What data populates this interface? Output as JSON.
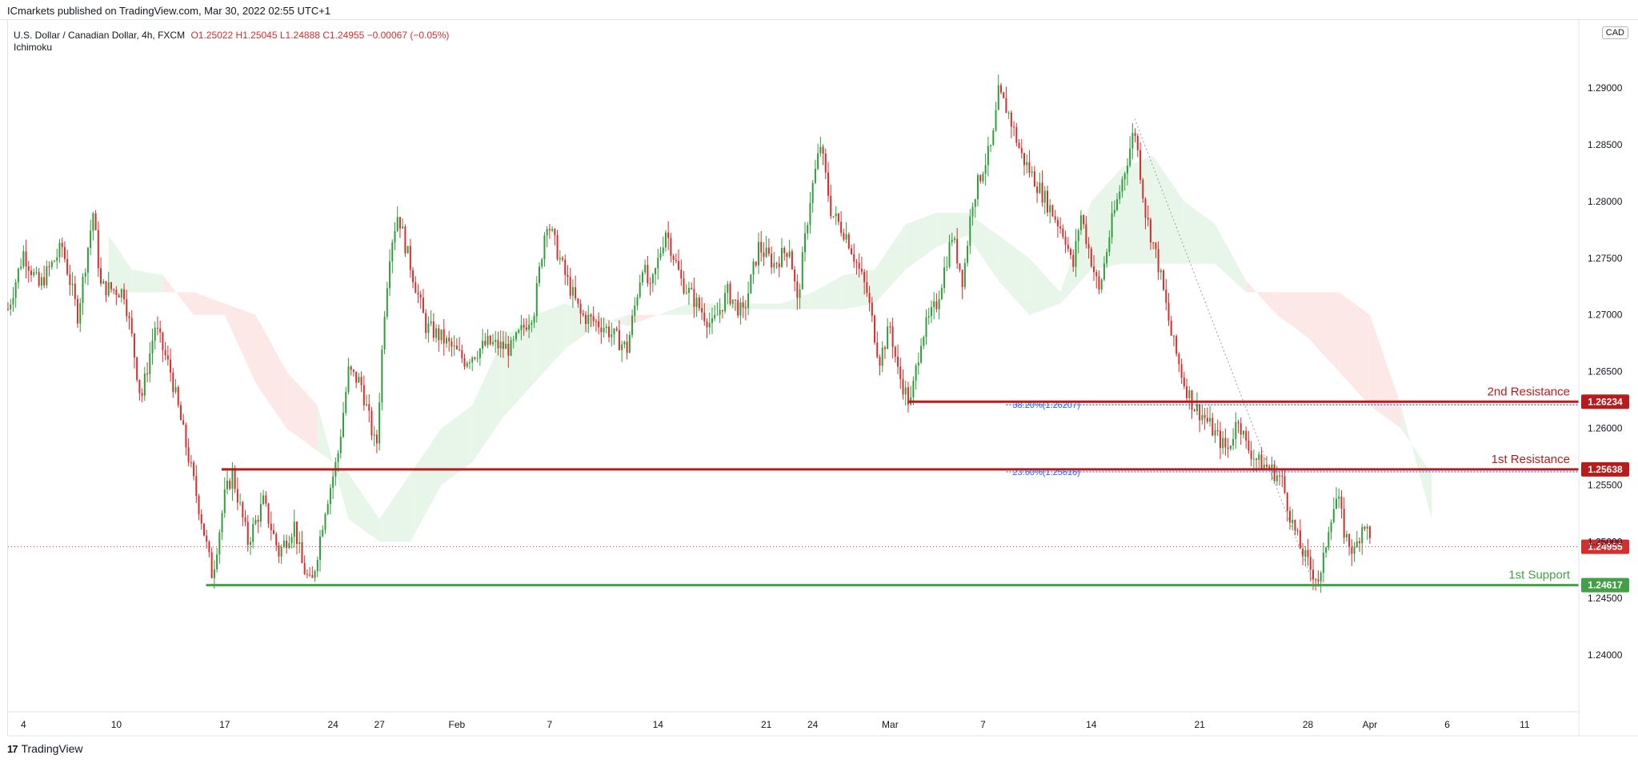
{
  "header": {
    "published": "ICmarkets published on TradingView.com, Mar 30, 2022 02:55 UTC+1"
  },
  "legend": {
    "symbol": "U.S. Dollar / Canadian Dollar, 4h, FXCM",
    "ohlc_text": "O1.25022 H1.25045 L1.24888 C1.24955 −0.00067 (−0.05%)",
    "indicator": "Ichimoku"
  },
  "currency_button": "CAD",
  "footer": {
    "brand_mark": "17",
    "brand": "TradingView"
  },
  "colors": {
    "up": "#26a69a",
    "bull": "#2e9e3a",
    "bear": "#d32f2f",
    "resistance": "#b71c1c",
    "support": "#43a047",
    "fib": "#2962ff",
    "cloud_bull": "#e8f5e9",
    "cloud_bear": "#fde8e8"
  },
  "chart_data": {
    "type": "candlestick",
    "title": "U.S. Dollar / Canadian Dollar, 4h, FXCM",
    "ylim": [
      1.235,
      1.296
    ],
    "y_ticks": [
      "1.29000",
      "1.28500",
      "1.28000",
      "1.27500",
      "1.27000",
      "1.26500",
      "1.26000",
      "1.25500",
      "1.25000",
      "1.24500",
      "1.24000"
    ],
    "y_tick_values": [
      1.29,
      1.285,
      1.28,
      1.275,
      1.27,
      1.265,
      1.26,
      1.255,
      1.25,
      1.245,
      1.24
    ],
    "x_ticks": [
      {
        "label": "4",
        "day": 4
      },
      {
        "label": "10",
        "day": 10
      },
      {
        "label": "17",
        "day": 17
      },
      {
        "label": "24",
        "day": 24
      },
      {
        "label": "27",
        "day": 27
      },
      {
        "label": "Feb",
        "day": 32
      },
      {
        "label": "7",
        "day": 38
      },
      {
        "label": "14",
        "day": 45
      },
      {
        "label": "21",
        "day": 52
      },
      {
        "label": "24",
        "day": 55
      },
      {
        "label": "Mar",
        "day": 60
      },
      {
        "label": "7",
        "day": 66
      },
      {
        "label": "14",
        "day": 73
      },
      {
        "label": "21",
        "day": 80
      },
      {
        "label": "28",
        "day": 87
      },
      {
        "label": "Apr",
        "day": 91
      },
      {
        "label": "6",
        "day": 96
      },
      {
        "label": "11",
        "day": 101
      }
    ],
    "x_range_days": [
      3,
      104.5
    ],
    "price_path": [
      [
        3.0,
        1.2705
      ],
      [
        4.0,
        1.2755
      ],
      [
        5.0,
        1.2725
      ],
      [
        6.5,
        1.276
      ],
      [
        7.5,
        1.27
      ],
      [
        8.5,
        1.279
      ],
      [
        9.0,
        1.2725
      ],
      [
        10.5,
        1.272
      ],
      [
        11.0,
        1.268
      ],
      [
        11.6,
        1.2625
      ],
      [
        12.5,
        1.269
      ],
      [
        13.5,
        1.265
      ],
      [
        14.5,
        1.2585
      ],
      [
        15.5,
        1.252
      ],
      [
        16.2,
        1.247
      ],
      [
        17.0,
        1.254
      ],
      [
        17.5,
        1.256
      ],
      [
        18.5,
        1.25
      ],
      [
        19.5,
        1.2535
      ],
      [
        20.5,
        1.249
      ],
      [
        21.5,
        1.2515
      ],
      [
        22.0,
        1.248
      ],
      [
        22.6,
        1.246
      ],
      [
        23.5,
        1.253
      ],
      [
        24.3,
        1.2575
      ],
      [
        25.0,
        1.265
      ],
      [
        25.8,
        1.264
      ],
      [
        26.8,
        1.258
      ],
      [
        27.3,
        1.27
      ],
      [
        27.7,
        1.276
      ],
      [
        28.2,
        1.279
      ],
      [
        28.7,
        1.276
      ],
      [
        30.0,
        1.269
      ],
      [
        31.0,
        1.268
      ],
      [
        32.5,
        1.266
      ],
      [
        34.0,
        1.2675
      ],
      [
        35.5,
        1.267
      ],
      [
        37.0,
        1.2705
      ],
      [
        37.8,
        1.2785
      ],
      [
        39.0,
        1.2735
      ],
      [
        40.0,
        1.27
      ],
      [
        41.5,
        1.269
      ],
      [
        43.0,
        1.267
      ],
      [
        44.0,
        1.2745
      ],
      [
        44.5,
        1.272
      ],
      [
        45.5,
        1.2775
      ],
      [
        46.5,
        1.273
      ],
      [
        47.5,
        1.271
      ],
      [
        48.5,
        1.269
      ],
      [
        49.5,
        1.272
      ],
      [
        50.5,
        1.27
      ],
      [
        51.5,
        1.276
      ],
      [
        52.5,
        1.2745
      ],
      [
        53.5,
        1.276
      ],
      [
        54.0,
        1.271
      ],
      [
        54.8,
        1.28
      ],
      [
        55.5,
        1.285
      ],
      [
        56.2,
        1.279
      ],
      [
        57.2,
        1.277
      ],
      [
        58.5,
        1.272
      ],
      [
        59.3,
        1.266
      ],
      [
        60.0,
        1.269
      ],
      [
        60.5,
        1.265
      ],
      [
        61.3,
        1.262
      ],
      [
        62.0,
        1.268
      ],
      [
        63.0,
        1.271
      ],
      [
        64.0,
        1.277
      ],
      [
        64.7,
        1.273
      ],
      [
        65.3,
        1.28
      ],
      [
        66.0,
        1.283
      ],
      [
        66.6,
        1.285
      ],
      [
        67.0,
        1.2895
      ],
      [
        67.6,
        1.288
      ],
      [
        68.5,
        1.284
      ],
      [
        69.5,
        1.2815
      ],
      [
        70.5,
        1.279
      ],
      [
        71.3,
        1.277
      ],
      [
        71.8,
        1.274
      ],
      [
        72.3,
        1.279
      ],
      [
        72.8,
        1.276
      ],
      [
        73.5,
        1.272
      ],
      [
        74.3,
        1.278
      ],
      [
        75.2,
        1.283
      ],
      [
        75.8,
        1.2865
      ],
      [
        76.5,
        1.279
      ],
      [
        77.4,
        1.274
      ],
      [
        78.2,
        1.268
      ],
      [
        79.0,
        1.264
      ],
      [
        79.6,
        1.262
      ],
      [
        80.3,
        1.261
      ],
      [
        81.0,
        1.2595
      ],
      [
        81.8,
        1.258
      ],
      [
        82.5,
        1.261
      ],
      [
        83.0,
        1.2585
      ],
      [
        83.8,
        1.257
      ],
      [
        84.5,
        1.2565
      ],
      [
        85.3,
        1.2555
      ],
      [
        85.9,
        1.252
      ],
      [
        86.5,
        1.2495
      ],
      [
        87.2,
        1.2475
      ],
      [
        87.8,
        1.2465
      ],
      [
        88.4,
        1.252
      ],
      [
        88.9,
        1.254
      ],
      [
        89.4,
        1.2505
      ],
      [
        90.0,
        1.249
      ],
      [
        90.6,
        1.252
      ],
      [
        91.1,
        1.2496
      ]
    ],
    "ichimoku_cloud": {
      "x": [
        9.5,
        11,
        13,
        15,
        17,
        19,
        21,
        23,
        25,
        27,
        29,
        31,
        33,
        35,
        37,
        39,
        41,
        43,
        45,
        47,
        49,
        51,
        53,
        55,
        57,
        59,
        61,
        63,
        65,
        67,
        69,
        71,
        73,
        75,
        77,
        79,
        81,
        83,
        85,
        87,
        89,
        91,
        93,
        95
      ],
      "span_a": [
        1.277,
        1.274,
        1.2735,
        1.27,
        1.27,
        1.264,
        1.26,
        1.258,
        1.256,
        1.252,
        1.256,
        1.26,
        1.262,
        1.268,
        1.27,
        1.271,
        1.27,
        1.269,
        1.27,
        1.271,
        1.271,
        1.271,
        1.271,
        1.272,
        1.2735,
        1.274,
        1.278,
        1.279,
        1.279,
        1.277,
        1.275,
        1.272,
        1.28,
        1.283,
        1.284,
        1.28,
        1.278,
        1.273,
        1.27,
        1.268,
        1.265,
        1.262,
        1.26,
        1.256
      ],
      "span_b": [
        1.272,
        1.272,
        1.272,
        1.272,
        1.271,
        1.27,
        1.265,
        1.262,
        1.252,
        1.25,
        1.25,
        1.255,
        1.257,
        1.261,
        1.264,
        1.267,
        1.269,
        1.27,
        1.27,
        1.27,
        1.2705,
        1.2705,
        1.2705,
        1.2705,
        1.2705,
        1.271,
        1.274,
        1.276,
        1.277,
        1.273,
        1.27,
        1.271,
        1.274,
        1.2745,
        1.2745,
        1.2745,
        1.2745,
        1.272,
        1.272,
        1.272,
        1.272,
        1.27,
        1.262,
        1.252
      ]
    },
    "levels": [
      {
        "label": "2nd Resistance",
        "value": 1.26234,
        "value_text": "1.26234",
        "kind": "resistance",
        "from_day": 61.2
      },
      {
        "label": "1st Resistance",
        "value": 1.25638,
        "value_text": "1.25638",
        "kind": "resistance",
        "from_day": 16.8
      },
      {
        "label": "1st Support",
        "value": 1.24617,
        "value_text": "1.24617",
        "kind": "support",
        "from_day": 15.8
      }
    ],
    "fib_levels": [
      {
        "label": "38.20%(1.26207)",
        "value": 1.26207
      },
      {
        "label": "23.60%(1.25616)",
        "value": 1.25616
      }
    ],
    "fib_trend": {
      "from": [
        75.8,
        1.2873
      ],
      "to": [
        87.3,
        1.2465
      ]
    },
    "current_price": {
      "value": 1.24955,
      "value_text": "1.24955"
    }
  }
}
